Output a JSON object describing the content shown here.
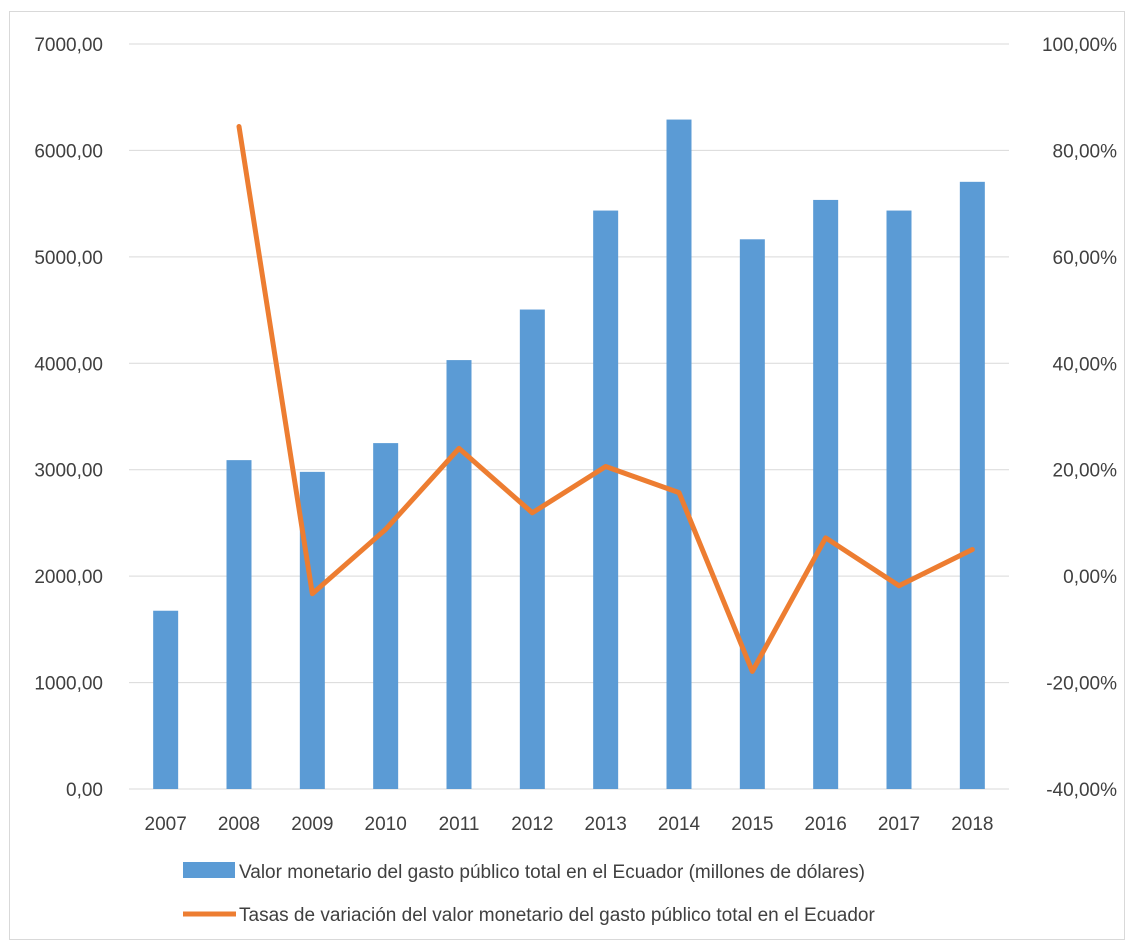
{
  "chart_data": {
    "type": "bar",
    "categories": [
      "2007",
      "2008",
      "2009",
      "2010",
      "2011",
      "2012",
      "2013",
      "2014",
      "2015",
      "2016",
      "2017",
      "2018"
    ],
    "series": [
      {
        "name": "Valor monetario del gasto público  total en el Ecuador (millones de dólares)",
        "type": "bar",
        "axis": "left",
        "color": "#5b9bd5",
        "values": [
          1675,
          3090,
          2980,
          3250,
          4030,
          4505,
          5435,
          6290,
          5165,
          5535,
          5435,
          5705
        ]
      },
      {
        "name": "Tasas de variación del valor monetario del gasto público total en el Ecuador",
        "type": "line",
        "axis": "right",
        "color": "#ed7d31",
        "values": [
          null,
          84.5,
          -3.3,
          8.8,
          24.0,
          11.9,
          20.6,
          15.7,
          -17.9,
          7.2,
          -1.8,
          5.0
        ]
      }
    ],
    "y_left": {
      "ylim": [
        0,
        7000
      ],
      "ticks": [
        0,
        1000,
        2000,
        3000,
        4000,
        5000,
        6000,
        7000
      ],
      "tick_labels": [
        "0,00",
        "1000,00",
        "2000,00",
        "3000,00",
        "4000,00",
        "5000,00",
        "6000,00",
        "7000,00"
      ]
    },
    "y_right": {
      "ylim": [
        -40,
        100
      ],
      "ticks": [
        -40,
        -20,
        0,
        20,
        40,
        60,
        80,
        100
      ],
      "tick_labels": [
        "-40,00%",
        "-20,00%",
        "0,00%",
        "20,00%",
        "40,00%",
        "60,00%",
        "80,00%",
        "100,00%"
      ]
    },
    "grid": true,
    "legend": "bottom"
  }
}
